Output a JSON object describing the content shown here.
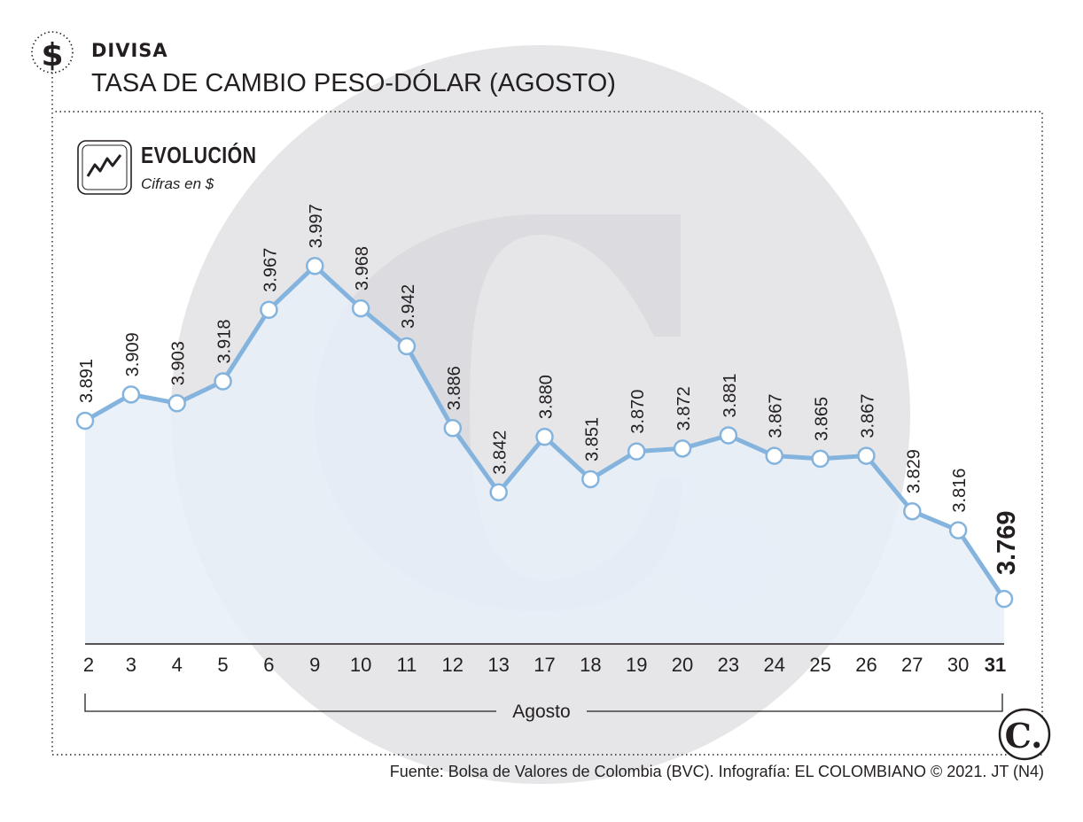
{
  "header": {
    "section": "DIVISA",
    "title": "TASA DE CAMBIO PESO-DÓLAR (AGOSTO)",
    "currency_symbol": "$"
  },
  "panel": {
    "title": "EVOLUCIÓN",
    "subtitle": "Cifras en $"
  },
  "footer": {
    "source": "Fuente: Bolsa de Valores de Colombia (BVC). Infografía: EL COLOMBIANO © 2021. JT (N4)"
  },
  "logo": {
    "letter": "C."
  },
  "colors": {
    "line": "#84b4dd",
    "area": "#e8eef8",
    "text": "#231f20",
    "watermark": "#e5e5e7"
  },
  "chart_data": {
    "type": "line",
    "x": [
      "2",
      "3",
      "4",
      "5",
      "6",
      "9",
      "10",
      "11",
      "12",
      "13",
      "17",
      "18",
      "19",
      "20",
      "23",
      "24",
      "25",
      "26",
      "27",
      "30",
      "31"
    ],
    "values": [
      3891,
      3909,
      3903,
      3918,
      3967,
      3997,
      3968,
      3942,
      3886,
      3842,
      3880,
      3851,
      3870,
      3872,
      3881,
      3867,
      3865,
      3867,
      3829,
      3816,
      3769
    ],
    "labels": [
      "3.891",
      "3.909",
      "3.903",
      "3.918",
      "3.967",
      "3.997",
      "3.968",
      "3.942",
      "3.886",
      "3.842",
      "3.880",
      "3.851",
      "3.870",
      "3.872",
      "3.881",
      "3.867",
      "3.865",
      "3.867",
      "3.829",
      "3.816",
      "3.769"
    ],
    "xlabel": "Agosto",
    "highlight_last": true
  }
}
